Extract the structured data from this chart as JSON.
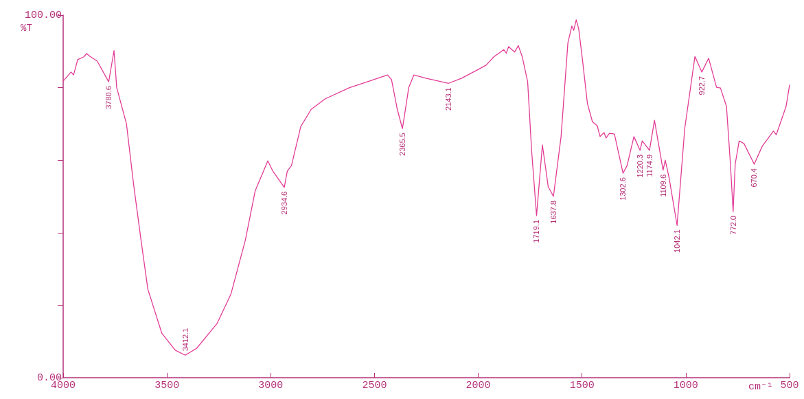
{
  "chart_data": {
    "type": "line",
    "xlabel": "cm⁻¹",
    "ylabel": "%T",
    "xlim": [
      4000,
      500
    ],
    "xticks": [
      4000,
      3500,
      3000,
      2500,
      2000,
      1500,
      1000,
      500
    ],
    "ylim": [
      0,
      100
    ],
    "yticks": [
      {
        "value": 0,
        "label": "0.00"
      },
      {
        "value": 20,
        "label": null
      },
      {
        "value": 40,
        "label": null
      },
      {
        "value": 60,
        "label": null
      },
      {
        "value": 80,
        "label": null
      },
      {
        "value": 100,
        "label": "100.00"
      }
    ],
    "grid": false,
    "marker": "none",
    "line_style": "solid",
    "series": [
      {
        "color": "#e23c96",
        "x": [
          4000,
          3962,
          3950,
          3930,
          3900,
          3887,
          3870,
          3836,
          3780.6,
          3755,
          3742,
          3695,
          3660,
          3625,
          3592,
          3525,
          3460,
          3412.1,
          3357,
          3258,
          3192,
          3122,
          3075,
          3014,
          2990,
          2934.6,
          2920,
          2900,
          2855,
          2805,
          2738,
          2620,
          2535,
          2437,
          2418,
          2390,
          2365.5,
          2355,
          2335,
          2310,
          2253,
          2143.1,
          2080,
          2000,
          1962,
          1925,
          1877,
          1865,
          1854,
          1825,
          1807,
          1788,
          1762,
          1743,
          1719.1,
          1691,
          1663,
          1637.8,
          1601,
          1568,
          1549,
          1540,
          1528,
          1516,
          1498,
          1474,
          1450,
          1427,
          1413,
          1394,
          1384,
          1368,
          1344,
          1302.6,
          1283,
          1250,
          1220.3,
          1210,
          1174.9,
          1151,
          1109.6,
          1099,
          1080,
          1042.1,
          1005,
          956,
          922.7,
          890,
          852,
          833,
          804,
          785,
          772.0,
          762,
          743,
          720,
          670.4,
          632,
          578,
          564,
          517,
          500
        ],
        "values": [
          81.8,
          84.3,
          83.5,
          87.7,
          88.5,
          89.4,
          88.6,
          87.3,
          81.6,
          90.2,
          80,
          70,
          53,
          38,
          24.4,
          12.3,
          7.6,
          6.2,
          8.1,
          15,
          23,
          38,
          51.5,
          59.8,
          57,
          52.5,
          57,
          58.5,
          69.3,
          74,
          76.9,
          80,
          81.6,
          83.5,
          82.2,
          74,
          68.7,
          72.5,
          80,
          83.5,
          82.6,
          81.2,
          82.6,
          85,
          86.2,
          88.5,
          90.5,
          89.5,
          91.3,
          89.8,
          91.6,
          88.5,
          81.6,
          62.7,
          44.7,
          64.2,
          52.7,
          50,
          66.5,
          92.4,
          97,
          95.8,
          98.7,
          96.2,
          87.7,
          75.6,
          70.6,
          69.5,
          66.5,
          67.6,
          66.1,
          67.4,
          67.2,
          56.4,
          58.5,
          66.5,
          62.7,
          65.3,
          62.7,
          71,
          57.2,
          60,
          55,
          42,
          68.8,
          88.6,
          84.3,
          88.1,
          80.1,
          79.9,
          74.8,
          58.9,
          45.8,
          58.9,
          65.3,
          64.6,
          58.9,
          63.8,
          68,
          67,
          74.8,
          80.7
        ]
      }
    ],
    "annotations": [
      {
        "text": "3780.6",
        "x": 3780.6,
        "y": 81.6
      },
      {
        "text": "3412.1",
        "x": 3412.1,
        "y": 6.2
      },
      {
        "text": "2934.6",
        "x": 2934.6,
        "y": 52.5
      },
      {
        "text": "2365.5",
        "x": 2365.5,
        "y": 68.7
      },
      {
        "text": "2143.1",
        "x": 2143.1,
        "y": 81.2
      },
      {
        "text": "1719.1",
        "x": 1719.1,
        "y": 44.7
      },
      {
        "text": "1637.8",
        "x": 1637.8,
        "y": 50
      },
      {
        "text": "1302.6",
        "x": 1302.6,
        "y": 56.4
      },
      {
        "text": "1220.3",
        "x": 1220.3,
        "y": 62.7
      },
      {
        "text": "1174.9",
        "x": 1174.9,
        "y": 62.7
      },
      {
        "text": "1109.6",
        "x": 1109.6,
        "y": 57.2
      },
      {
        "text": "1042.1",
        "x": 1042.1,
        "y": 42
      },
      {
        "text": "922.7",
        "x": 922.7,
        "y": 84.3
      },
      {
        "text": "772.0",
        "x": 772.0,
        "y": 45.8
      },
      {
        "text": "670.4",
        "x": 670.4,
        "y": 58.9
      }
    ]
  }
}
